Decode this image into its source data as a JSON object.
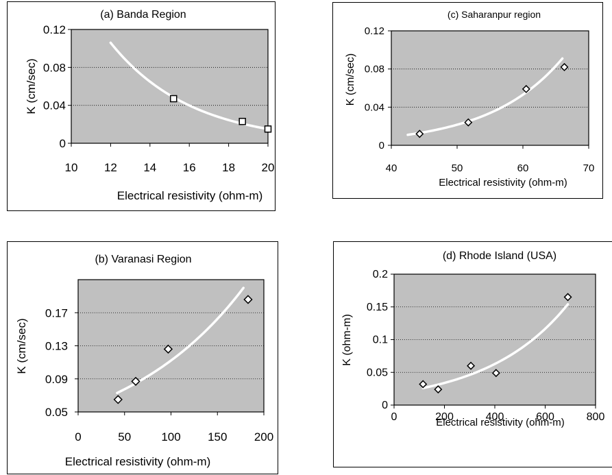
{
  "chart_data": [
    {
      "id": "a",
      "type": "scatter",
      "title": "(a) Banda Region",
      "xlabel": "Electrical resistivity (ohm-m)",
      "ylabel": "K (cm/sec)",
      "xlim": [
        10,
        20
      ],
      "ylim": [
        0,
        0.12
      ],
      "xticks": [
        10,
        12,
        14,
        16,
        18,
        20
      ],
      "yticks": [
        0,
        0.04,
        0.08,
        0.12
      ],
      "xtick_labels": [
        "10",
        "12",
        "14",
        "16",
        "18",
        "20"
      ],
      "ytick_labels": [
        "0",
        "0.04",
        "0.08",
        "0.12"
      ],
      "marker": "square",
      "grid": true,
      "points": [
        {
          "x": 15.2,
          "y": 0.047
        },
        {
          "x": 18.7,
          "y": 0.023
        },
        {
          "x": 20.0,
          "y": 0.015
        }
      ],
      "trendline": {
        "type": "exponential",
        "x_range": [
          12,
          20
        ],
        "start": 0.106,
        "end": 0.015
      }
    },
    {
      "id": "b",
      "type": "scatter",
      "title": "(b) Varanasi Region",
      "xlabel": "Electrical resistivity (ohm-m)",
      "ylabel": "K (cm/sec)",
      "xlim": [
        0,
        200
      ],
      "ylim": [
        0.05,
        0.21
      ],
      "xticks": [
        0,
        50,
        100,
        150,
        200
      ],
      "yticks": [
        0.05,
        0.09,
        0.13,
        0.17
      ],
      "xtick_labels": [
        "0",
        "50",
        "100",
        "150",
        "200"
      ],
      "ytick_labels": [
        "0.05",
        "0.09",
        "0.13",
        "0.17"
      ],
      "marker": "diamond",
      "grid": true,
      "points": [
        {
          "x": 43,
          "y": 0.065
        },
        {
          "x": 62,
          "y": 0.087
        },
        {
          "x": 97,
          "y": 0.126
        },
        {
          "x": 183,
          "y": 0.186
        }
      ],
      "trendline": {
        "type": "exponential",
        "x_range": [
          42,
          178
        ],
        "start": 0.073,
        "end": 0.2
      }
    },
    {
      "id": "c",
      "type": "scatter",
      "title": "(c) Saharanpur region",
      "xlabel": "Electrical resistivity (ohm-m)",
      "ylabel": "K (cm/sec)",
      "xlim": [
        40,
        70
      ],
      "ylim": [
        0,
        0.12
      ],
      "xticks": [
        40,
        50,
        60,
        70
      ],
      "yticks": [
        0,
        0.04,
        0.08,
        0.12
      ],
      "xtick_labels": [
        "40",
        "50",
        "60",
        "70"
      ],
      "ytick_labels": [
        "0",
        "0.04",
        "0.08",
        "0.12"
      ],
      "marker": "diamond",
      "grid": true,
      "points": [
        {
          "x": 44.3,
          "y": 0.012
        },
        {
          "x": 51.7,
          "y": 0.024
        },
        {
          "x": 60.5,
          "y": 0.059
        },
        {
          "x": 66.3,
          "y": 0.082
        }
      ],
      "trendline": {
        "type": "exponential",
        "x_range": [
          42.5,
          66
        ],
        "start": 0.011,
        "end": 0.091
      }
    },
    {
      "id": "d",
      "type": "scatter",
      "title": "(d) Rhode Island (USA)",
      "xlabel": "Electrical resistivity (ohm-m)",
      "ylabel": "K (ohm-m)",
      "xlim": [
        0,
        800
      ],
      "ylim": [
        0,
        0.2
      ],
      "xticks": [
        0,
        200,
        400,
        600,
        800
      ],
      "yticks": [
        0,
        0.05,
        0.1,
        0.15,
        0.2
      ],
      "xtick_labels": [
        "0",
        "200",
        "400",
        "600",
        "800"
      ],
      "ytick_labels": [
        "0",
        "0.05",
        "0.1",
        "0.15",
        "0.2"
      ],
      "marker": "diamond",
      "grid": true,
      "points": [
        {
          "x": 115,
          "y": 0.032
        },
        {
          "x": 175,
          "y": 0.024
        },
        {
          "x": 305,
          "y": 0.06
        },
        {
          "x": 405,
          "y": 0.049
        },
        {
          "x": 690,
          "y": 0.165
        }
      ],
      "trendline": {
        "type": "exponential",
        "x_range": [
          115,
          690
        ],
        "start": 0.026,
        "end": 0.154
      }
    }
  ]
}
